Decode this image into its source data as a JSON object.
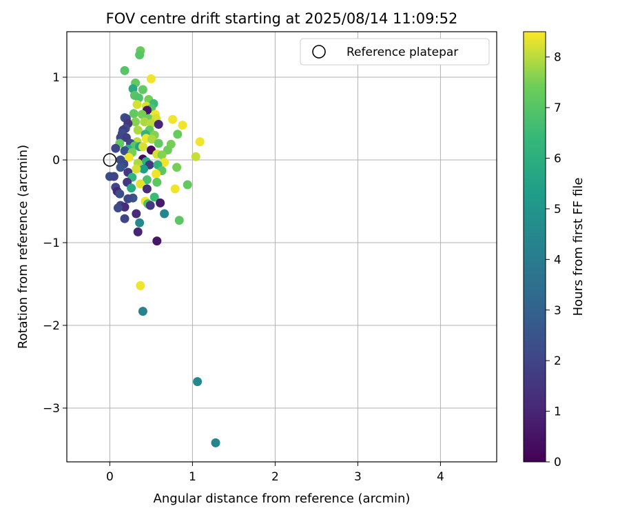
{
  "chart_data": {
    "type": "scatter",
    "title": "FOV centre drift starting at 2025/08/14 11:09:52",
    "xlabel": "Angular distance from reference (arcmin)",
    "ylabel": "Rotation from reference (arcmin)",
    "xlim": [
      -0.52,
      4.68
    ],
    "ylim": [
      -3.65,
      1.55
    ],
    "xticks": [
      0,
      1,
      2,
      3,
      4
    ],
    "yticks": [
      1,
      0,
      -1,
      -2,
      -3
    ],
    "xtick_labels": [
      "0",
      "1",
      "2",
      "3",
      "4"
    ],
    "ytick_labels": [
      "1",
      "0",
      "−1",
      "−2",
      "−3"
    ],
    "grid": true,
    "legend": {
      "placement": "top-right",
      "entries": [
        "Reference platepar"
      ]
    },
    "reference_point": {
      "x": 0.0,
      "y": 0.0
    },
    "colorbar": {
      "label": "Hours from first FF file",
      "range": [
        0,
        8.5
      ],
      "ticks": [
        0,
        1,
        2,
        3,
        4,
        5,
        6,
        7,
        8
      ],
      "tick_labels": [
        "0",
        "1",
        "2",
        "3",
        "4",
        "5",
        "6",
        "7",
        "8"
      ],
      "colormap": "viridis"
    },
    "points": [
      {
        "x": 0.37,
        "y": 1.32,
        "h": 7.3
      },
      {
        "x": 0.36,
        "y": 1.27,
        "h": 7.0
      },
      {
        "x": 0.18,
        "y": 1.08,
        "h": 7.0
      },
      {
        "x": 0.5,
        "y": 0.98,
        "h": 8.4
      },
      {
        "x": 0.31,
        "y": 0.93,
        "h": 7.2
      },
      {
        "x": 0.28,
        "y": 0.86,
        "h": 5.8
      },
      {
        "x": 0.4,
        "y": 0.85,
        "h": 7.2
      },
      {
        "x": 0.3,
        "y": 0.78,
        "h": 7.0
      },
      {
        "x": 0.35,
        "y": 0.75,
        "h": 6.9
      },
      {
        "x": 0.47,
        "y": 0.73,
        "h": 7.5
      },
      {
        "x": 0.53,
        "y": 0.68,
        "h": 6.5
      },
      {
        "x": 0.33,
        "y": 0.67,
        "h": 8.2
      },
      {
        "x": 0.44,
        "y": 0.65,
        "h": 8.2
      },
      {
        "x": 0.5,
        "y": 0.62,
        "h": 6.9
      },
      {
        "x": 0.45,
        "y": 0.6,
        "h": 0.5
      },
      {
        "x": 0.29,
        "y": 0.56,
        "h": 7.2
      },
      {
        "x": 0.39,
        "y": 0.55,
        "h": 7.5
      },
      {
        "x": 0.55,
        "y": 0.55,
        "h": 8.4
      },
      {
        "x": 0.18,
        "y": 0.51,
        "h": 2.4
      },
      {
        "x": 0.2,
        "y": 0.5,
        "h": 2.0
      },
      {
        "x": 0.47,
        "y": 0.5,
        "h": 7.4
      },
      {
        "x": 0.56,
        "y": 0.5,
        "h": 8.2
      },
      {
        "x": 0.76,
        "y": 0.49,
        "h": 8.4
      },
      {
        "x": 0.31,
        "y": 0.46,
        "h": 7.6
      },
      {
        "x": 0.42,
        "y": 0.46,
        "h": 7.9
      },
      {
        "x": 0.5,
        "y": 0.44,
        "h": 8.0
      },
      {
        "x": 0.59,
        "y": 0.43,
        "h": 1.0
      },
      {
        "x": 0.88,
        "y": 0.42,
        "h": 8.4
      },
      {
        "x": 0.22,
        "y": 0.44,
        "h": 1.5
      },
      {
        "x": 0.19,
        "y": 0.38,
        "h": 2.3
      },
      {
        "x": 0.16,
        "y": 0.36,
        "h": 1.7
      },
      {
        "x": 0.34,
        "y": 0.36,
        "h": 7.9
      },
      {
        "x": 0.48,
        "y": 0.36,
        "h": 7.2
      },
      {
        "x": 0.15,
        "y": 0.32,
        "h": 2.2
      },
      {
        "x": 0.43,
        "y": 0.31,
        "h": 6.2
      },
      {
        "x": 0.82,
        "y": 0.31,
        "h": 7.3
      },
      {
        "x": 0.54,
        "y": 0.3,
        "h": 7.6
      },
      {
        "x": 0.13,
        "y": 0.27,
        "h": 2.1
      },
      {
        "x": 0.2,
        "y": 0.27,
        "h": 1.8
      },
      {
        "x": 0.44,
        "y": 0.26,
        "h": 8.4
      },
      {
        "x": 0.51,
        "y": 0.25,
        "h": 7.9
      },
      {
        "x": 0.33,
        "y": 0.22,
        "h": 8.0
      },
      {
        "x": 1.09,
        "y": 0.22,
        "h": 8.4
      },
      {
        "x": 0.12,
        "y": 0.2,
        "h": 7.2
      },
      {
        "x": 0.25,
        "y": 0.2,
        "h": 2.0
      },
      {
        "x": 0.59,
        "y": 0.2,
        "h": 7.2
      },
      {
        "x": 0.74,
        "y": 0.19,
        "h": 7.5
      },
      {
        "x": 0.3,
        "y": 0.17,
        "h": 7.0
      },
      {
        "x": 0.36,
        "y": 0.16,
        "h": 5.5
      },
      {
        "x": 0.4,
        "y": 0.16,
        "h": 8.2
      },
      {
        "x": 0.07,
        "y": 0.14,
        "h": 2.0
      },
      {
        "x": 0.22,
        "y": 0.13,
        "h": 6.0
      },
      {
        "x": 0.5,
        "y": 0.12,
        "h": 0.2
      },
      {
        "x": 0.7,
        "y": 0.12,
        "h": 7.4
      },
      {
        "x": 0.18,
        "y": 0.11,
        "h": 2.4
      },
      {
        "x": 0.27,
        "y": 0.09,
        "h": 7.5
      },
      {
        "x": 0.57,
        "y": 0.07,
        "h": 8.2
      },
      {
        "x": 0.63,
        "y": 0.06,
        "h": 7.6
      },
      {
        "x": 1.04,
        "y": 0.04,
        "h": 8.1
      },
      {
        "x": 0.23,
        "y": 0.03,
        "h": 8.4
      },
      {
        "x": 0.4,
        "y": 0.01,
        "h": 0.3
      },
      {
        "x": 0.13,
        "y": 0.0,
        "h": 2.2
      },
      {
        "x": 0.44,
        "y": -0.02,
        "h": 6.0
      },
      {
        "x": 0.66,
        "y": -0.03,
        "h": 8.4
      },
      {
        "x": 0.34,
        "y": -0.04,
        "h": 7.9
      },
      {
        "x": 0.17,
        "y": -0.05,
        "h": 2.1
      },
      {
        "x": 0.48,
        "y": -0.06,
        "h": 1.6
      },
      {
        "x": 0.58,
        "y": -0.06,
        "h": 6.2
      },
      {
        "x": 0.81,
        "y": -0.09,
        "h": 7.5
      },
      {
        "x": 0.13,
        "y": -0.09,
        "h": 2.5
      },
      {
        "x": 0.41,
        "y": -0.11,
        "h": 5.3
      },
      {
        "x": 0.32,
        "y": -0.11,
        "h": 8.2
      },
      {
        "x": 0.63,
        "y": -0.13,
        "h": 7.1
      },
      {
        "x": 0.22,
        "y": -0.15,
        "h": 1.5
      },
      {
        "x": 0.56,
        "y": -0.17,
        "h": 8.4
      },
      {
        "x": 0.0,
        "y": -0.2,
        "h": 2.2
      },
      {
        "x": 0.05,
        "y": -0.2,
        "h": 2.0
      },
      {
        "x": 0.27,
        "y": -0.21,
        "h": 6.2
      },
      {
        "x": 0.45,
        "y": -0.24,
        "h": 6.8
      },
      {
        "x": 0.21,
        "y": -0.27,
        "h": 1.5
      },
      {
        "x": 0.57,
        "y": -0.27,
        "h": 7.1
      },
      {
        "x": 0.37,
        "y": -0.29,
        "h": 8.3
      },
      {
        "x": 0.94,
        "y": -0.3,
        "h": 7.2
      },
      {
        "x": 0.07,
        "y": -0.33,
        "h": 2.1
      },
      {
        "x": 0.26,
        "y": -0.34,
        "h": 5.8
      },
      {
        "x": 0.45,
        "y": -0.35,
        "h": 1.2
      },
      {
        "x": 0.79,
        "y": -0.35,
        "h": 8.4
      },
      {
        "x": 0.09,
        "y": -0.38,
        "h": 1.0
      },
      {
        "x": 0.12,
        "y": -0.41,
        "h": 2.3
      },
      {
        "x": 0.54,
        "y": -0.45,
        "h": 6.5
      },
      {
        "x": 0.28,
        "y": -0.46,
        "h": 2.4
      },
      {
        "x": 0.22,
        "y": -0.47,
        "h": 2.1
      },
      {
        "x": 0.43,
        "y": -0.5,
        "h": 8.4
      },
      {
        "x": 0.46,
        "y": -0.53,
        "h": 6.9
      },
      {
        "x": 0.61,
        "y": -0.52,
        "h": 0.7
      },
      {
        "x": 0.49,
        "y": -0.55,
        "h": 1.6
      },
      {
        "x": 0.13,
        "y": -0.55,
        "h": 2.0
      },
      {
        "x": 0.18,
        "y": -0.57,
        "h": 1.2
      },
      {
        "x": 0.1,
        "y": -0.58,
        "h": 2.2
      },
      {
        "x": 0.32,
        "y": -0.65,
        "h": 1.2
      },
      {
        "x": 0.66,
        "y": -0.65,
        "h": 4.4
      },
      {
        "x": 0.18,
        "y": -0.71,
        "h": 2.0
      },
      {
        "x": 0.84,
        "y": -0.73,
        "h": 7.1
      },
      {
        "x": 0.36,
        "y": -0.76,
        "h": 4.5
      },
      {
        "x": 0.34,
        "y": -0.87,
        "h": 1.0
      },
      {
        "x": 0.57,
        "y": -0.98,
        "h": 0.6
      },
      {
        "x": 0.37,
        "y": -1.52,
        "h": 8.4
      },
      {
        "x": 0.4,
        "y": -1.83,
        "h": 4.2
      },
      {
        "x": 1.06,
        "y": -2.68,
        "h": 4.5
      },
      {
        "x": 1.28,
        "y": -3.42,
        "h": 4.4
      }
    ]
  }
}
